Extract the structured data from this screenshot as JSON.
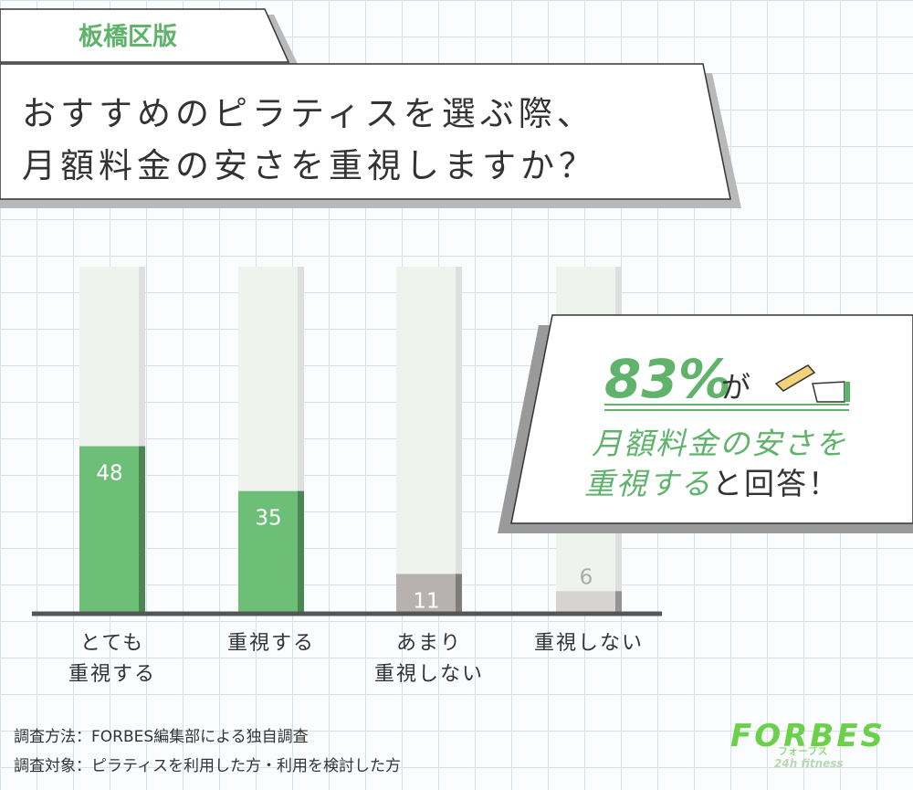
{
  "tag": "板橋区版",
  "title": {
    "line1": "おすすめのピラティスを選ぶ際、",
    "line2": "月額料金の安さを重視しますか？"
  },
  "chart_data": {
    "type": "bar",
    "categories": [
      "とても\n重視する",
      "重視する",
      "あまり\n重視しない",
      "重視しない"
    ],
    "values": [
      48,
      35,
      11,
      6
    ],
    "colors": [
      "#6dbf78",
      "#6dbf78",
      "#b7b2af",
      "#d6d3d1"
    ],
    "ylim": [
      0,
      100
    ]
  },
  "callout": {
    "highlight": "83%",
    "highlight_suffix": "が",
    "line1": "月額料金の安さを",
    "line2_highlight": "重視する",
    "line2_rest": "と回答！"
  },
  "notes": [
    "調査方法：FORBES編集部による独自調査",
    "調査対象：ピラティスを利用した方・利用を検討した方"
  ],
  "logo": {
    "name": "FORBES",
    "kana": "フォーブス",
    "sub": "24h fitness"
  }
}
